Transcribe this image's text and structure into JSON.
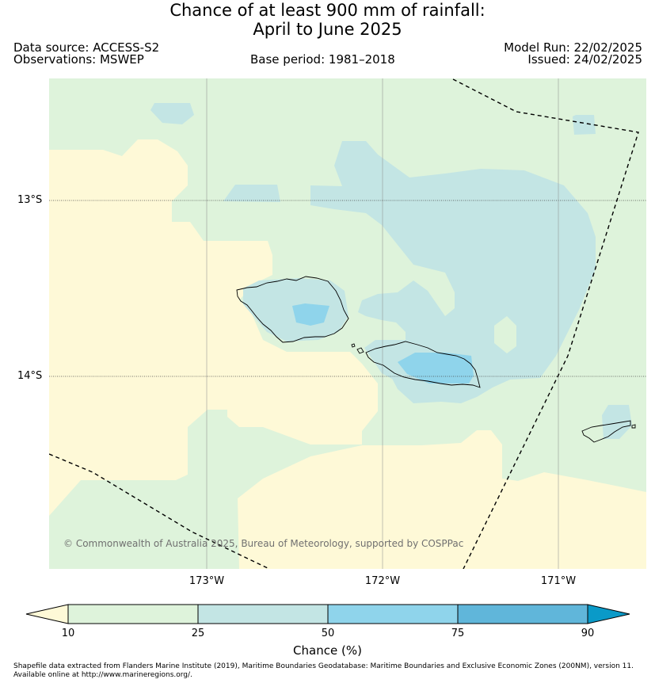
{
  "title": {
    "line1": "Chance of at least 900 mm of rainfall:",
    "line2": "April to June 2025"
  },
  "meta": {
    "data_source": "Data source: ACCESS-S2",
    "observations": "Observations: MSWEP",
    "base_period": "Base period: 1981–2018",
    "model_run": "Model Run: 22/02/2025",
    "issued": "Issued: 24/02/2025"
  },
  "map": {
    "lat_labels": [
      "13°S",
      "14°S"
    ],
    "lon_labels": [
      "173°W",
      "172°W",
      "171°W"
    ],
    "copyright": "© Commonwealth of Australia 2025, Bureau of Meteorology, supported by COSPPac",
    "region_colors": {
      "below_10": "#fef9d7",
      "10_25": "#def3db",
      "25_50": "#c3e5e4",
      "50_75": "#8fd4eb",
      "75_90": "#60b6da",
      "above_90": "#0a9ac8"
    }
  },
  "colorbar": {
    "ticks": [
      "10",
      "25",
      "50",
      "75",
      "90"
    ],
    "label": "Chance (%)"
  },
  "footnote": {
    "line1": "Shapefile data extracted from Flanders Marine Institute (2019), Maritime Boundaries Geodatabase: Maritime Boundaries and Exclusive Economic Zones (200NM), version 11.",
    "line2": "Available online at http://www.marineregions.org/."
  }
}
